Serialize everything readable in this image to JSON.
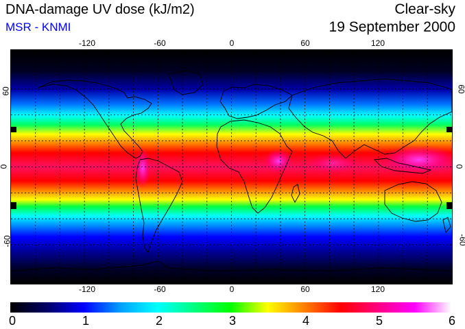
{
  "title": "DNA-damage UV dose (kJ/m2)",
  "credit": "MSR - KNMI",
  "credit_color": "#0000ff",
  "condition": "Clear-sky",
  "date": "19 September 2000",
  "map": {
    "projection": "equirectangular",
    "lon_ticks_top": [
      "-120",
      "-60",
      "0",
      "60",
      "120"
    ],
    "lon_ticks_bottom": [
      "-120",
      "-60",
      "0",
      "60",
      "120"
    ],
    "lat_ticks_left": [
      "60",
      "0",
      "-60"
    ],
    "lat_ticks_right": [
      "60",
      "0",
      "-60"
    ],
    "lon_range": [
      -180,
      180
    ],
    "lat_range": [
      -90,
      90
    ],
    "gridlines": "dotted every 20 degrees",
    "coastlines": true
  },
  "colorbar": {
    "labels": [
      "0",
      "1",
      "2",
      "3",
      "4",
      "5",
      "6"
    ],
    "min": 0,
    "max": 6,
    "stops": [
      {
        "value": 0.0,
        "color": "#000000"
      },
      {
        "value": 0.5,
        "color": "#000066"
      },
      {
        "value": 1.0,
        "color": "#0000ff"
      },
      {
        "value": 1.5,
        "color": "#00a0ff"
      },
      {
        "value": 2.0,
        "color": "#00ffff"
      },
      {
        "value": 2.5,
        "color": "#00ff80"
      },
      {
        "value": 3.0,
        "color": "#00ff00"
      },
      {
        "value": 3.5,
        "color": "#ffff00"
      },
      {
        "value": 4.0,
        "color": "#ff8000"
      },
      {
        "value": 4.5,
        "color": "#ff0000"
      },
      {
        "value": 5.0,
        "color": "#ff0080"
      },
      {
        "value": 5.5,
        "color": "#ff00ff"
      },
      {
        "value": 6.0,
        "color": "#ffffff"
      }
    ]
  }
}
